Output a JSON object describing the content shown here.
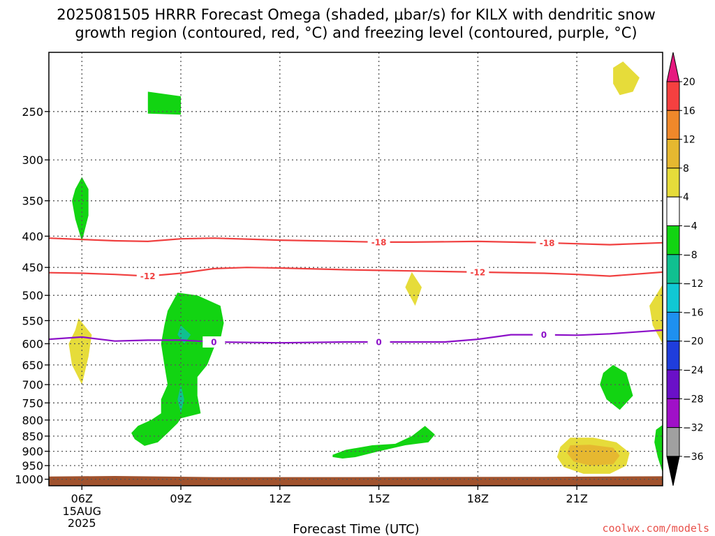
{
  "title": {
    "line1": "2025081505 HRRR Forecast Omega (shaded, μbar/s) for KILX with dendritic snow",
    "line2": "growth region (contoured, red, °C) and freezing level (contoured, purple, °C)"
  },
  "credit": "coolwx.com/models",
  "chart_data": {
    "type": "contour",
    "xlabel": "Forecast Time (UTC)",
    "x_range_hours": [
      5.0,
      23.6
    ],
    "x_ticks": [
      {
        "hour": 6,
        "label": "06Z",
        "sub": [
          "15AUG",
          "2025"
        ]
      },
      {
        "hour": 9,
        "label": "09Z"
      },
      {
        "hour": 12,
        "label": "12Z"
      },
      {
        "hour": 15,
        "label": "15Z"
      },
      {
        "hour": 18,
        "label": "18Z"
      },
      {
        "hour": 21,
        "label": "21Z"
      }
    ],
    "y_range_hpa": [
      1025,
      200
    ],
    "y_ticks": [
      250,
      300,
      350,
      400,
      450,
      500,
      550,
      600,
      650,
      700,
      750,
      800,
      850,
      900,
      950,
      1000
    ],
    "grid": true,
    "colorbar": {
      "labels": [
        "20",
        "16",
        "12",
        "8",
        "4",
        "−4",
        "−8",
        "−12",
        "−16",
        "−20",
        "−24",
        "−28",
        "−32",
        "−36"
      ],
      "colors": [
        "#e6197f",
        "#f54040",
        "#f0882a",
        "#e6b830",
        "#e6dc3a",
        "#ffffff",
        "#12d412",
        "#10c090",
        "#10c8d4",
        "#1e90f0",
        "#1f3ddc",
        "#6a10c8",
        "#a010c8",
        "#a0a0a0",
        "#000000"
      ]
    },
    "contours": [
      {
        "name": "-18",
        "color": "#f04040",
        "label": "-18",
        "points": [
          [
            5.0,
            403
          ],
          [
            6.0,
            405
          ],
          [
            7.0,
            407
          ],
          [
            8.0,
            408
          ],
          [
            9.0,
            404
          ],
          [
            10.0,
            403
          ],
          [
            12.0,
            406
          ],
          [
            14.0,
            408
          ],
          [
            15.0,
            409
          ],
          [
            16.0,
            409
          ],
          [
            18.0,
            408
          ],
          [
            20.0,
            410
          ],
          [
            22.0,
            413
          ],
          [
            23.6,
            410
          ]
        ],
        "label_hours": [
          15.0,
          20.1
        ]
      },
      {
        "name": "-12",
        "color": "#f04040",
        "label": "-12",
        "points": [
          [
            5.0,
            459
          ],
          [
            6.0,
            460
          ],
          [
            7.0,
            462
          ],
          [
            8.0,
            465
          ],
          [
            9.0,
            460
          ],
          [
            10.0,
            452
          ],
          [
            11.0,
            450
          ],
          [
            12.0,
            451
          ],
          [
            14.0,
            454
          ],
          [
            15.0,
            455
          ],
          [
            16.0,
            456
          ],
          [
            18.0,
            458
          ],
          [
            20.0,
            460
          ],
          [
            21.0,
            462
          ],
          [
            22.0,
            465
          ],
          [
            23.6,
            458
          ]
        ],
        "label_hours": [
          8.0,
          18.0
        ]
      },
      {
        "name": "0",
        "color": "#8c10c8",
        "label": "0",
        "points": [
          [
            5.0,
            590
          ],
          [
            6.0,
            585
          ],
          [
            7.0,
            594
          ],
          [
            8.0,
            592
          ],
          [
            9.0,
            592
          ],
          [
            10.0,
            596
          ],
          [
            12.0,
            598
          ],
          [
            14.0,
            596
          ],
          [
            15.0,
            596
          ],
          [
            17.0,
            596
          ],
          [
            18.0,
            590
          ],
          [
            19.0,
            580
          ],
          [
            20.0,
            580
          ],
          [
            21.0,
            581
          ],
          [
            22.0,
            578
          ],
          [
            23.6,
            570
          ]
        ],
        "label_hours": [
          10.0,
          15.0,
          20.0
        ]
      }
    ],
    "omega_regions": [
      {
        "level": "-4 to -8",
        "color": "#12d412",
        "points": [
          [
            8.0,
            232
          ],
          [
            9.0,
            236
          ],
          [
            9.0,
            253
          ],
          [
            8.0,
            252
          ]
        ]
      },
      {
        "level": "-4 to -8",
        "color": "#12d412",
        "points": [
          [
            6.0,
            320
          ],
          [
            6.2,
            335
          ],
          [
            6.2,
            370
          ],
          [
            6.0,
            408
          ],
          [
            5.8,
            375
          ],
          [
            5.7,
            350
          ],
          [
            5.8,
            335
          ]
        ]
      },
      {
        "level": "-4 to -8",
        "color": "#12d412",
        "points": [
          [
            8.9,
            495
          ],
          [
            9.5,
            500
          ],
          [
            10.2,
            520
          ],
          [
            10.3,
            555
          ],
          [
            10.2,
            590
          ],
          [
            10.0,
            610
          ],
          [
            9.8,
            650
          ],
          [
            9.5,
            680
          ],
          [
            9.5,
            730
          ],
          [
            9.6,
            780
          ],
          [
            9.0,
            795
          ],
          [
            8.9,
            810
          ],
          [
            8.6,
            840
          ],
          [
            8.3,
            870
          ],
          [
            7.9,
            882
          ],
          [
            7.6,
            860
          ],
          [
            7.5,
            840
          ],
          [
            7.7,
            818
          ],
          [
            8.1,
            800
          ],
          [
            8.4,
            780
          ],
          [
            8.4,
            740
          ],
          [
            8.6,
            700
          ],
          [
            8.5,
            650
          ],
          [
            8.4,
            600
          ],
          [
            8.5,
            560
          ],
          [
            8.6,
            530
          ]
        ]
      },
      {
        "level": "-8 to -12",
        "color": "#10c090",
        "points": [
          [
            9.0,
            560
          ],
          [
            9.3,
            580
          ],
          [
            9.1,
            600
          ],
          [
            8.9,
            580
          ]
        ]
      },
      {
        "level": "-8 to -12",
        "color": "#10c090",
        "points": [
          [
            9.0,
            700
          ],
          [
            9.1,
            740
          ],
          [
            9.0,
            780
          ],
          [
            8.9,
            740
          ]
        ]
      },
      {
        "level": "-4 to -8",
        "color": "#12d412",
        "points": [
          [
            13.6,
            912
          ],
          [
            14.0,
            895
          ],
          [
            14.8,
            880
          ],
          [
            15.5,
            875
          ],
          [
            16.0,
            850
          ],
          [
            16.4,
            818
          ],
          [
            16.7,
            845
          ],
          [
            16.5,
            870
          ],
          [
            15.8,
            880
          ],
          [
            15.0,
            900
          ],
          [
            14.3,
            920
          ],
          [
            13.9,
            925
          ],
          [
            13.6,
            920
          ]
        ]
      },
      {
        "level": "-4 to -8",
        "color": "#12d412",
        "points": [
          [
            21.8,
            670
          ],
          [
            22.1,
            650
          ],
          [
            22.5,
            670
          ],
          [
            22.7,
            730
          ],
          [
            22.3,
            770
          ],
          [
            21.9,
            740
          ],
          [
            21.7,
            700
          ]
        ]
      },
      {
        "level": "-4 to -8",
        "color": "#12d412",
        "points": [
          [
            23.4,
            830
          ],
          [
            23.6,
            815
          ],
          [
            23.6,
            975
          ],
          [
            23.45,
            920
          ],
          [
            23.35,
            870
          ]
        ]
      },
      {
        "level": "4 to 8",
        "color": "#e6dc3a",
        "points": [
          [
            22.4,
            207
          ],
          [
            22.9,
            220
          ],
          [
            22.7,
            232
          ],
          [
            22.3,
            235
          ],
          [
            22.1,
            225
          ],
          [
            22.1,
            212
          ]
        ]
      },
      {
        "level": "4 to 8",
        "color": "#e6dc3a",
        "points": [
          [
            5.9,
            545
          ],
          [
            6.3,
            580
          ],
          [
            6.2,
            630
          ],
          [
            6.0,
            700
          ],
          [
            5.7,
            650
          ],
          [
            5.6,
            600
          ],
          [
            5.8,
            570
          ]
        ]
      },
      {
        "level": "4 to 8",
        "color": "#e6dc3a",
        "points": [
          [
            16.0,
            458
          ],
          [
            16.3,
            485
          ],
          [
            16.1,
            520
          ],
          [
            15.8,
            485
          ]
        ]
      },
      {
        "level": "4 to 8",
        "color": "#e6dc3a",
        "points": [
          [
            23.6,
            480
          ],
          [
            23.2,
            520
          ],
          [
            23.3,
            560
          ],
          [
            23.6,
            600
          ]
        ]
      },
      {
        "level": "4 to 8",
        "color": "#e6dc3a",
        "points": [
          [
            20.5,
            885
          ],
          [
            20.8,
            855
          ],
          [
            21.5,
            855
          ],
          [
            22.2,
            870
          ],
          [
            22.6,
            905
          ],
          [
            22.5,
            950
          ],
          [
            22.0,
            980
          ],
          [
            21.2,
            980
          ],
          [
            20.6,
            955
          ],
          [
            20.4,
            920
          ]
        ]
      },
      {
        "level": "8 to 12",
        "color": "#e6b830",
        "points": [
          [
            20.8,
            880
          ],
          [
            21.4,
            878
          ],
          [
            22.1,
            888
          ],
          [
            22.3,
            915
          ],
          [
            22.1,
            945
          ],
          [
            21.4,
            950
          ],
          [
            20.9,
            935
          ],
          [
            20.7,
            905
          ]
        ]
      }
    ],
    "terrain": {
      "color": "#a0522d",
      "surface_hpa": [
        [
          5.0,
          990
        ],
        [
          7.0,
          988
        ],
        [
          10.0,
          992
        ],
        [
          14.0,
          992
        ],
        [
          20.0,
          991
        ],
        [
          23.6,
          989
        ]
      ]
    }
  }
}
